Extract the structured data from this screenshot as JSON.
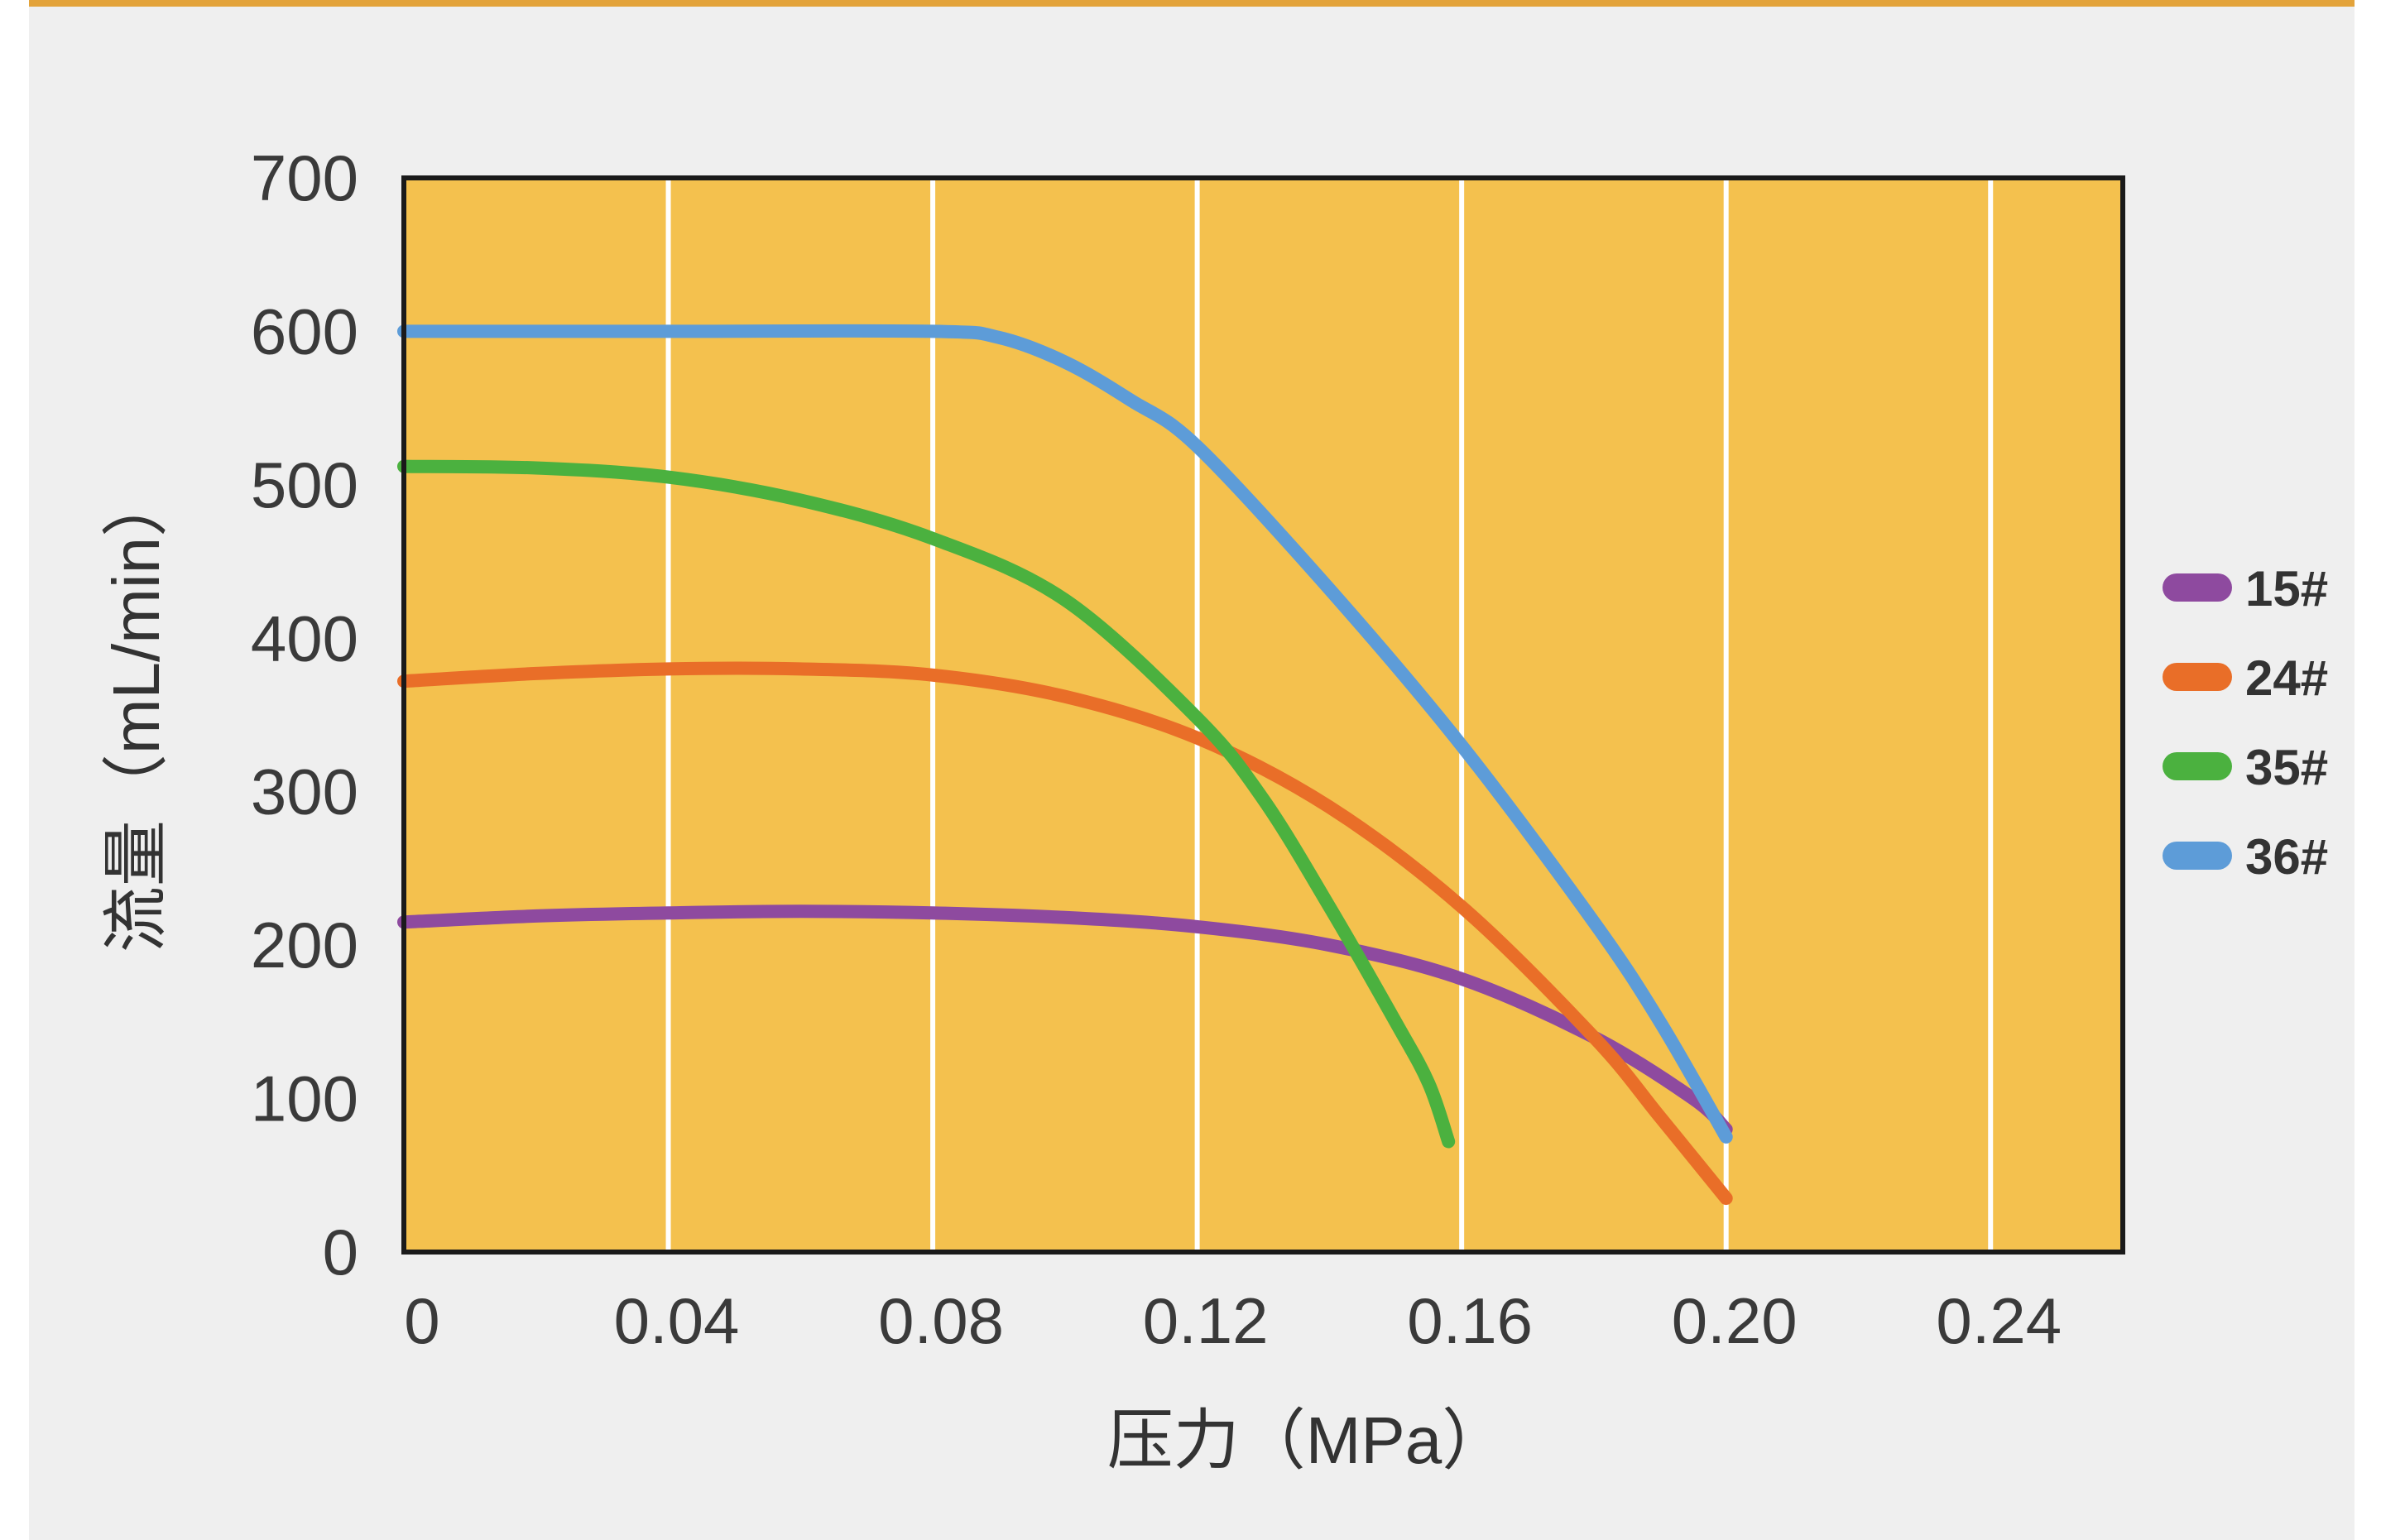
{
  "chart_data": {
    "type": "line",
    "xlabel": "压力（MPa）",
    "ylabel": "流量（mL/min）",
    "xlim": [
      0,
      0.26
    ],
    "ylim": [
      0,
      700
    ],
    "x_ticks": [
      0,
      0.04,
      0.08,
      0.12,
      0.16,
      0.2,
      0.24
    ],
    "x_tick_labels": [
      "0",
      "0.04",
      "0.08",
      "0.12",
      "0.16",
      "0.20",
      "0.24"
    ],
    "y_ticks": [
      0,
      100,
      200,
      300,
      400,
      500,
      600,
      700
    ],
    "y_tick_labels": [
      "0",
      "100",
      "200",
      "300",
      "400",
      "500",
      "600",
      "700"
    ],
    "grid": "vertical",
    "legend_position": "right",
    "plot_background": "#f4c14e",
    "series": [
      {
        "name": "15#",
        "color": "#8e4a9f",
        "points": [
          [
            0,
            215
          ],
          [
            0.02,
            219
          ],
          [
            0.04,
            221
          ],
          [
            0.06,
            222
          ],
          [
            0.08,
            221
          ],
          [
            0.1,
            218
          ],
          [
            0.12,
            212
          ],
          [
            0.14,
            200
          ],
          [
            0.16,
            178
          ],
          [
            0.18,
            140
          ],
          [
            0.195,
            100
          ],
          [
            0.2,
            80
          ]
        ]
      },
      {
        "name": "24#",
        "color": "#e96e28",
        "points": [
          [
            0,
            372
          ],
          [
            0.02,
            377
          ],
          [
            0.04,
            380
          ],
          [
            0.06,
            380
          ],
          [
            0.08,
            376
          ],
          [
            0.1,
            362
          ],
          [
            0.12,
            335
          ],
          [
            0.14,
            290
          ],
          [
            0.16,
            225
          ],
          [
            0.18,
            140
          ],
          [
            0.19,
            88
          ],
          [
            0.2,
            35
          ]
        ]
      },
      {
        "name": "35#",
        "color": "#4bb13f",
        "points": [
          [
            0,
            512
          ],
          [
            0.02,
            511
          ],
          [
            0.04,
            505
          ],
          [
            0.06,
            490
          ],
          [
            0.08,
            465
          ],
          [
            0.1,
            425
          ],
          [
            0.12,
            348
          ],
          [
            0.13,
            295
          ],
          [
            0.14,
            225
          ],
          [
            0.15,
            150
          ],
          [
            0.155,
            110
          ],
          [
            0.158,
            72
          ]
        ]
      },
      {
        "name": "36#",
        "color": "#5d9cd8",
        "points": [
          [
            0,
            600
          ],
          [
            0.04,
            600
          ],
          [
            0.08,
            600
          ],
          [
            0.09,
            596
          ],
          [
            0.1,
            580
          ],
          [
            0.11,
            555
          ],
          [
            0.12,
            525
          ],
          [
            0.14,
            432
          ],
          [
            0.16,
            330
          ],
          [
            0.18,
            215
          ],
          [
            0.19,
            150
          ],
          [
            0.2,
            75
          ]
        ]
      }
    ]
  }
}
